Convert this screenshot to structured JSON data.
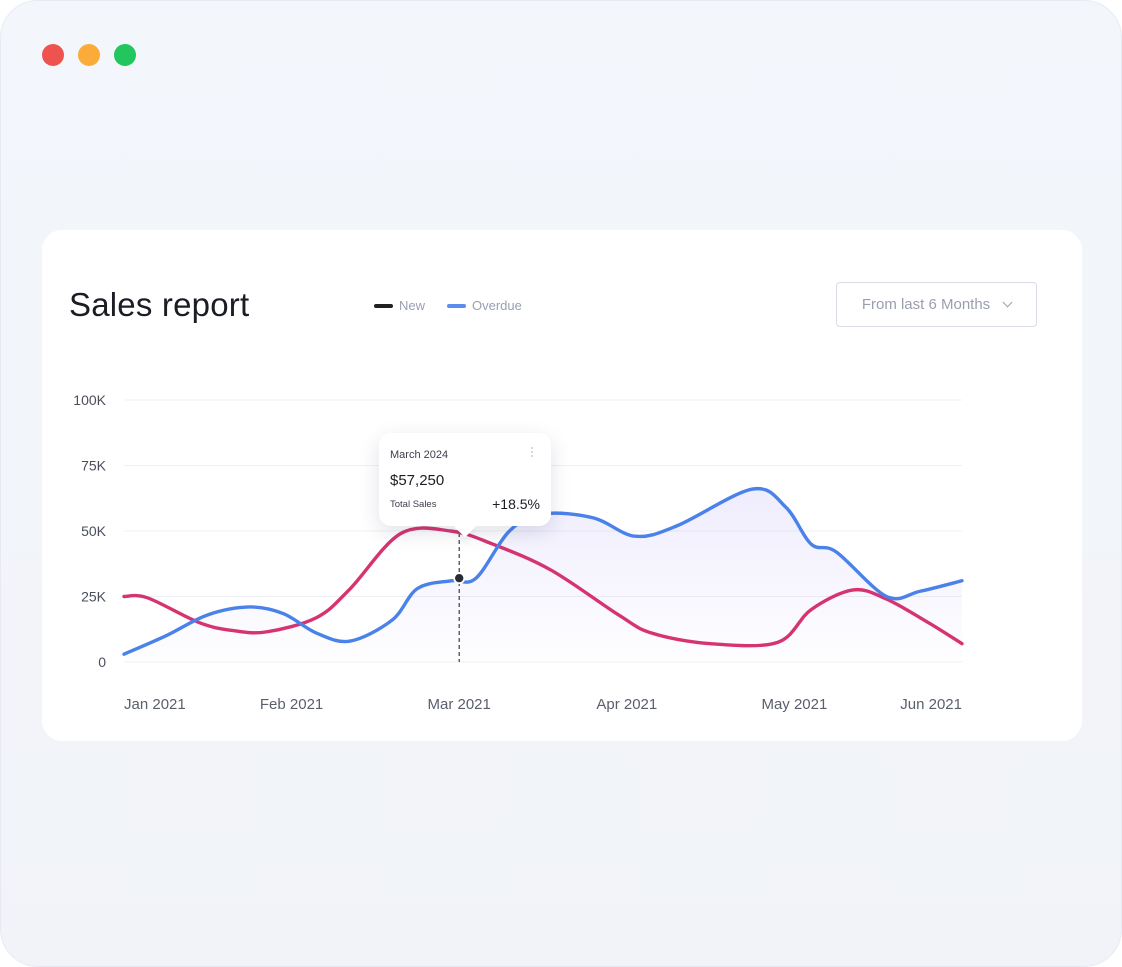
{
  "window": {
    "controls": [
      "close",
      "minimize",
      "maximize"
    ]
  },
  "card": {
    "title": "Sales report",
    "legend": [
      {
        "label": "New",
        "color": "#1f2125"
      },
      {
        "label": "Overdue",
        "color": "#5b8def"
      }
    ],
    "range_select": {
      "label": "From last 6 Months",
      "icon": "chevron-down-icon"
    }
  },
  "tooltip": {
    "month": "March 2024",
    "value": "$57,250",
    "label": "Total Sales",
    "change": "+18.5%"
  },
  "chart_data": {
    "type": "line",
    "categories": [
      "Jan 2021",
      "Feb 2021",
      "Mar 2021",
      "Apr 2021",
      "May 2021",
      "Jun 2021"
    ],
    "y_ticks": [
      "100K",
      "75K",
      "50K",
      "25K",
      "0"
    ],
    "ylim": [
      0,
      100000
    ],
    "xlim": [
      0,
      5
    ],
    "series": [
      {
        "color": "#d63471",
        "x": [
          0,
          0.14,
          0.45,
          0.65,
          0.85,
          1.15,
          1.35,
          1.65,
          1.95,
          2.2,
          2.55,
          2.95,
          3.15,
          3.5,
          3.9,
          4.1,
          4.35,
          4.55,
          4.8,
          5
        ],
        "y": [
          25000,
          24500,
          15000,
          12000,
          11500,
          17000,
          28000,
          49000,
          50000,
          45000,
          35000,
          18000,
          11000,
          7000,
          7500,
          20000,
          27500,
          24000,
          15000,
          7000
        ]
      },
      {
        "color": "#4a82ea",
        "x": [
          0,
          0.25,
          0.5,
          0.75,
          0.95,
          1.15,
          1.35,
          1.6,
          1.75,
          1.95,
          2.1,
          2.3,
          2.5,
          2.8,
          3.05,
          3.3,
          3.75,
          3.95,
          4.1,
          4.25,
          4.55,
          4.75,
          5
        ],
        "y": [
          3000,
          10000,
          18000,
          21000,
          18500,
          11000,
          8000,
          16000,
          28000,
          31000,
          32000,
          50000,
          56500,
          55000,
          48000,
          52000,
          66000,
          59000,
          45000,
          42000,
          25000,
          27000,
          31000
        ],
        "fill": "#8f7ef0"
      }
    ],
    "highlight": {
      "x": 2,
      "y": 32000
    }
  }
}
